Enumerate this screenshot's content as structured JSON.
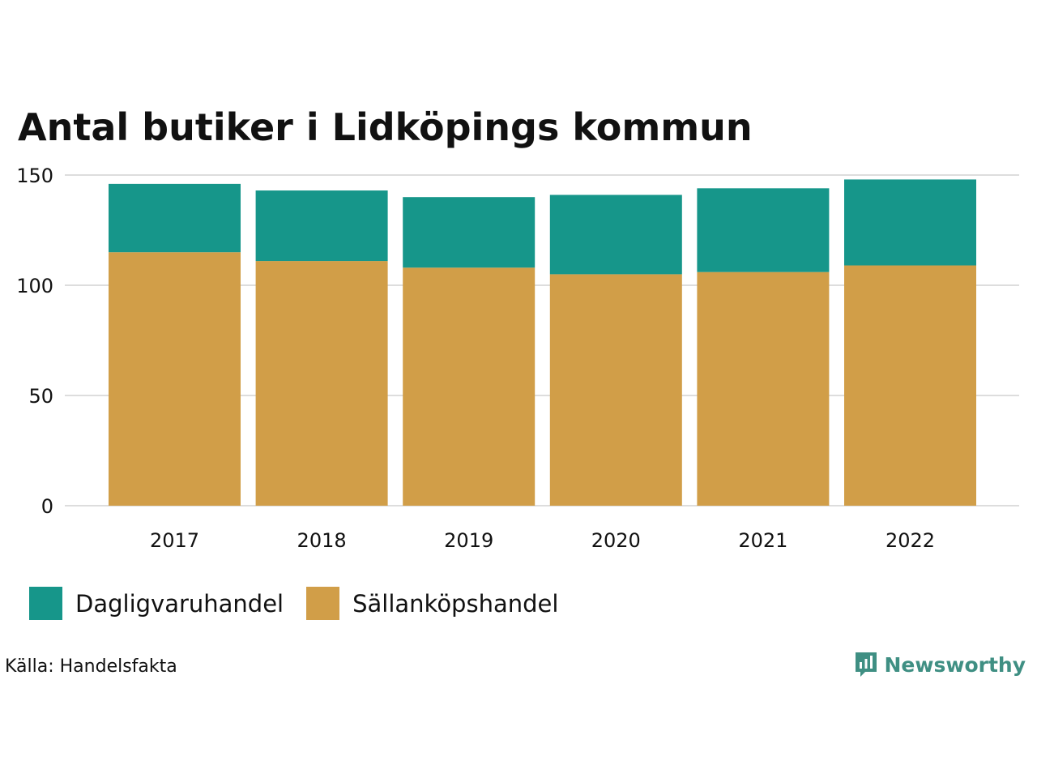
{
  "chart_data": {
    "type": "bar",
    "stacked": true,
    "title": "Antal butiker i Lidköpings kommun",
    "xlabel": "",
    "ylabel": "",
    "ylim": [
      0,
      150
    ],
    "yticks": [
      "0",
      "50",
      "100",
      "150"
    ],
    "categories": [
      "2017",
      "2018",
      "2019",
      "2020",
      "2021",
      "2022"
    ],
    "series": [
      {
        "name": "Sällanköpshandel",
        "color": "#d19e48",
        "values": [
          115,
          111,
          108,
          105,
          106,
          109
        ]
      },
      {
        "name": "Dagligvaruhandel",
        "color": "#16968a",
        "values": [
          31,
          32,
          32,
          36,
          38,
          39
        ]
      }
    ],
    "grid": true,
    "legend": "bottom-left"
  },
  "legend": {
    "items": [
      {
        "label": "Dagligvaruhandel",
        "color": "#16968a"
      },
      {
        "label": "Sällanköpshandel",
        "color": "#d19e48"
      }
    ]
  },
  "footer": {
    "source": "Källa: Handelsfakta",
    "brand": "Newsworthy",
    "brand_icon": "newsworthy-logo-icon"
  }
}
